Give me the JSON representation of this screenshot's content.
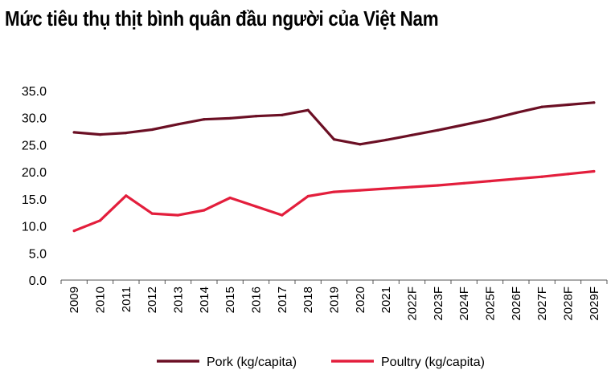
{
  "title": "Mức tiêu thụ thịt bình quân đầu người của Việt Nam",
  "colors": {
    "pork": "#6b0f24",
    "poultry": "#e31e3c"
  },
  "chart_data": {
    "type": "line",
    "title": "Mức tiêu thụ thịt bình quân đầu người của Việt Nam",
    "xlabel": "",
    "ylabel": "",
    "ylim": [
      0,
      35
    ],
    "yticks": [
      "0.0",
      "5.0",
      "10.0",
      "15.0",
      "20.0",
      "25.0",
      "30.0",
      "35.0"
    ],
    "grid": false,
    "legend": "bottom",
    "categories": [
      "2009",
      "2010",
      "2011",
      "2012",
      "2013",
      "2014",
      "2015",
      "2016",
      "2017",
      "2018",
      "2019",
      "2020",
      "2021",
      "2022F",
      "2023F",
      "2024F",
      "2025F",
      "2026F",
      "2027F",
      "2028F",
      "2029F"
    ],
    "series": [
      {
        "name": "Pork (kg/capita)",
        "color": "#6b0f24",
        "values": [
          27.3,
          26.9,
          27.2,
          27.8,
          28.8,
          29.7,
          29.9,
          30.3,
          30.5,
          31.4,
          26.0,
          25.1,
          25.9,
          26.8,
          27.7,
          28.7,
          29.7,
          30.9,
          32.0,
          32.4,
          32.8
        ]
      },
      {
        "name": "Poultry (kg/capita)",
        "color": "#e31e3c",
        "values": [
          9.1,
          11.0,
          15.6,
          12.3,
          12.0,
          12.9,
          15.2,
          13.6,
          12.0,
          15.5,
          16.3,
          16.6,
          16.9,
          17.2,
          17.5,
          17.9,
          18.3,
          18.7,
          19.1,
          19.6,
          20.1
        ]
      }
    ]
  }
}
